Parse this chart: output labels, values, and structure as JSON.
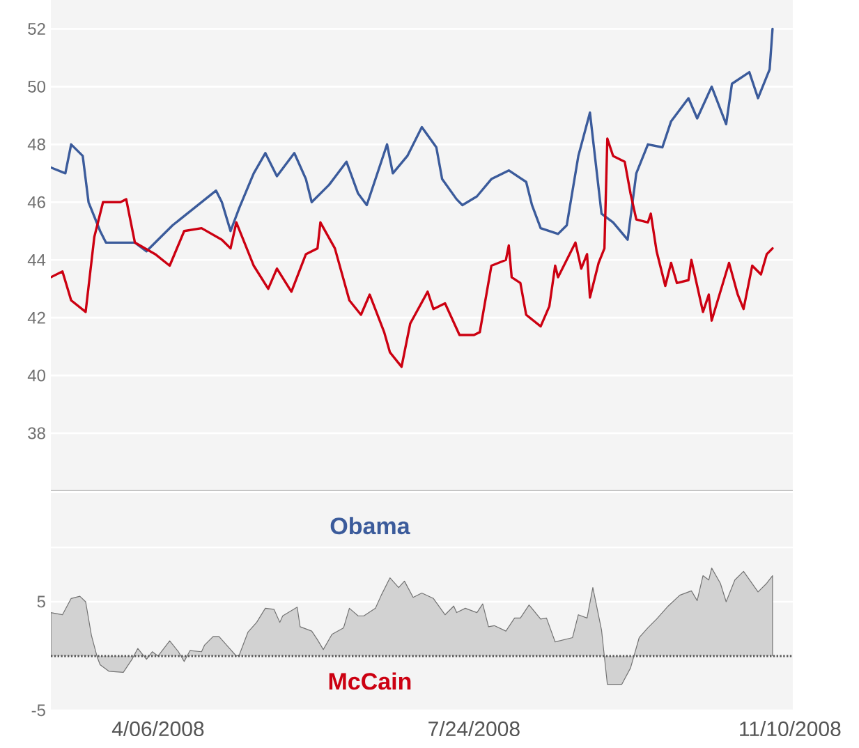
{
  "chart_data": [
    {
      "type": "line",
      "xlim": [
        "2008-02-29",
        "2008-11-11"
      ],
      "ylim": [
        36,
        53
      ],
      "yticks": [
        38,
        40,
        42,
        44,
        46,
        48,
        50,
        52
      ],
      "grid": "y",
      "tick_labels": "y",
      "line_style": "solid",
      "series": [
        {
          "color": "#3b5b9b",
          "x": [
            "2008-02-29",
            "2008-03-05",
            "2008-03-07",
            "2008-03-11",
            "2008-03-13",
            "2008-03-17",
            "2008-03-19",
            "2008-03-29",
            "2008-04-02",
            "2008-04-07",
            "2008-04-11",
            "2008-04-16",
            "2008-04-21",
            "2008-04-26",
            "2008-04-28",
            "2008-05-01",
            "2008-05-04",
            "2008-05-09",
            "2008-05-13",
            "2008-05-17",
            "2008-05-23",
            "2008-05-27",
            "2008-05-29",
            "2008-06-04",
            "2008-06-10",
            "2008-06-14",
            "2008-06-17",
            "2008-06-24",
            "2008-06-26",
            "2008-07-01",
            "2008-07-06",
            "2008-07-11",
            "2008-07-13",
            "2008-07-18",
            "2008-07-20",
            "2008-07-25",
            "2008-07-30",
            "2008-08-05",
            "2008-08-11",
            "2008-08-13",
            "2008-08-16",
            "2008-08-22",
            "2008-08-25",
            "2008-08-29",
            "2008-09-02",
            "2008-09-06",
            "2008-09-10",
            "2008-09-15",
            "2008-09-18",
            "2008-09-22",
            "2008-09-27",
            "2008-09-30",
            "2008-10-06",
            "2008-10-09",
            "2008-10-14",
            "2008-10-19",
            "2008-10-21",
            "2008-10-27",
            "2008-10-30",
            "2008-11-03",
            "2008-11-04"
          ],
          "values": [
            47.2,
            47.0,
            48.0,
            47.6,
            46.0,
            45.0,
            44.6,
            44.6,
            44.3,
            44.8,
            45.2,
            45.6,
            46.0,
            46.4,
            46.0,
            45.0,
            45.8,
            47.0,
            47.7,
            46.9,
            47.7,
            46.8,
            46.0,
            46.6,
            47.4,
            46.3,
            45.9,
            48.0,
            47.0,
            47.6,
            48.6,
            47.9,
            46.8,
            46.1,
            45.9,
            46.2,
            46.8,
            47.1,
            46.7,
            45.9,
            45.1,
            44.9,
            45.2,
            47.6,
            49.1,
            45.6,
            45.3,
            44.7,
            47.0,
            48.0,
            47.9,
            48.8,
            49.6,
            48.9,
            50.0,
            48.7,
            50.1,
            50.5,
            49.6,
            50.6,
            52.0
          ]
        },
        {
          "color": "#cc0011",
          "x": [
            "2008-02-29",
            "2008-03-04",
            "2008-03-07",
            "2008-03-12",
            "2008-03-15",
            "2008-03-18",
            "2008-03-24",
            "2008-03-26",
            "2008-03-29",
            "2008-04-05",
            "2008-04-10",
            "2008-04-15",
            "2008-04-21",
            "2008-04-28",
            "2008-05-01",
            "2008-05-03",
            "2008-05-09",
            "2008-05-14",
            "2008-05-17",
            "2008-05-22",
            "2008-05-27",
            "2008-05-31",
            "2008-06-01",
            "2008-06-06",
            "2008-06-11",
            "2008-06-15",
            "2008-06-18",
            "2008-06-23",
            "2008-06-25",
            "2008-06-29",
            "2008-07-02",
            "2008-07-08",
            "2008-07-10",
            "2008-07-14",
            "2008-07-19",
            "2008-07-24",
            "2008-07-26",
            "2008-07-30",
            "2008-08-04",
            "2008-08-05",
            "2008-08-06",
            "2008-08-09",
            "2008-08-11",
            "2008-08-16",
            "2008-08-19",
            "2008-08-21",
            "2008-08-22",
            "2008-08-28",
            "2008-08-30",
            "2008-09-01",
            "2008-09-02",
            "2008-09-05",
            "2008-09-07",
            "2008-09-08",
            "2008-09-10",
            "2008-09-14",
            "2008-09-16",
            "2008-09-18",
            "2008-09-22",
            "2008-09-23",
            "2008-09-25",
            "2008-09-28",
            "2008-09-30",
            "2008-10-02",
            "2008-10-06",
            "2008-10-07",
            "2008-10-11",
            "2008-10-13",
            "2008-10-14",
            "2008-10-20",
            "2008-10-23",
            "2008-10-25",
            "2008-10-28",
            "2008-10-31",
            "2008-11-02",
            "2008-11-04"
          ],
          "values": [
            43.4,
            43.6,
            42.6,
            42.2,
            44.8,
            46.0,
            46.0,
            46.1,
            44.6,
            44.2,
            43.8,
            45.0,
            45.1,
            44.7,
            44.4,
            45.3,
            43.8,
            43.0,
            43.7,
            42.9,
            44.2,
            44.4,
            45.3,
            44.4,
            42.6,
            42.1,
            42.8,
            41.5,
            40.8,
            40.3,
            41.8,
            42.9,
            42.3,
            42.5,
            41.4,
            41.4,
            41.5,
            43.8,
            44.0,
            44.5,
            43.4,
            43.2,
            42.1,
            41.7,
            42.4,
            43.8,
            43.4,
            44.6,
            43.7,
            44.2,
            42.7,
            43.9,
            44.4,
            48.2,
            47.6,
            47.4,
            46.3,
            45.4,
            45.3,
            45.6,
            44.3,
            43.1,
            43.9,
            43.2,
            43.3,
            44.0,
            42.2,
            42.8,
            41.9,
            43.9,
            42.8,
            42.3,
            43.8,
            43.5,
            44.2,
            44.4
          ]
        }
      ]
    },
    {
      "type": "area",
      "xlim": [
        "2008-02-29",
        "2008-11-11"
      ],
      "ylim": [
        -5,
        15
      ],
      "yticks": [
        -5,
        5,
        {
          "value": 10,
          "label": null
        }
      ],
      "grid": "y",
      "xticks": [
        {
          "value": "2008-04-06",
          "label": "4/06/2008"
        },
        {
          "value": "2008-07-24",
          "label": "7/24/2008"
        },
        {
          "value": "2008-11-10",
          "label": "11/10/2008"
        }
      ],
      "annotations": [
        "Obama",
        "McCain"
      ],
      "ref_lines": [
        {
          "axis": "y",
          "value": 0,
          "color": "#555555",
          "line_style": "dotted"
        }
      ],
      "color": "#d2d2d2",
      "x": [
        "2008-02-29",
        "2008-03-04",
        "2008-03-07",
        "2008-03-10",
        "2008-03-12",
        "2008-03-14",
        "2008-03-16",
        "2008-03-17",
        "2008-03-20",
        "2008-03-25",
        "2008-03-28",
        "2008-03-30",
        "2008-04-02",
        "2008-04-04",
        "2008-04-06",
        "2008-04-10",
        "2008-04-13",
        "2008-04-15",
        "2008-04-17",
        "2008-04-21",
        "2008-04-22",
        "2008-04-25",
        "2008-04-27",
        "2008-05-01",
        "2008-05-03",
        "2008-05-04",
        "2008-05-07",
        "2008-05-10",
        "2008-05-13",
        "2008-05-16",
        "2008-05-18",
        "2008-05-19",
        "2008-05-24",
        "2008-05-25",
        "2008-05-29",
        "2008-05-31",
        "2008-06-02",
        "2008-06-05",
        "2008-06-09",
        "2008-06-11",
        "2008-06-14",
        "2008-06-16",
        "2008-06-20",
        "2008-06-22",
        "2008-06-25",
        "2008-06-28",
        "2008-06-30",
        "2008-07-03",
        "2008-07-06",
        "2008-07-10",
        "2008-07-14",
        "2008-07-17",
        "2008-07-18",
        "2008-07-21",
        "2008-07-25",
        "2008-07-27",
        "2008-07-29",
        "2008-07-31",
        "2008-08-04",
        "2008-08-07",
        "2008-08-09",
        "2008-08-12",
        "2008-08-16",
        "2008-08-18",
        "2008-08-21",
        "2008-08-27",
        "2008-08-29",
        "2008-09-01",
        "2008-09-03",
        "2008-09-06",
        "2008-09-08",
        "2008-09-13",
        "2008-09-16",
        "2008-09-19",
        "2008-09-22",
        "2008-09-25",
        "2008-09-29",
        "2008-10-03",
        "2008-10-07",
        "2008-10-09",
        "2008-10-11",
        "2008-10-13",
        "2008-10-14",
        "2008-10-17",
        "2008-10-19",
        "2008-10-22",
        "2008-10-25",
        "2008-10-30",
        "2008-11-02",
        "2008-11-04"
      ],
      "values": [
        4.0,
        3.8,
        5.3,
        5.5,
        5.0,
        1.9,
        -0.1,
        -0.8,
        -1.4,
        -1.5,
        -0.3,
        0.7,
        -0.3,
        0.4,
        0,
        1.4,
        0.4,
        -0.5,
        0.5,
        0.4,
        1.0,
        1.8,
        1.8,
        0.6,
        0,
        0.1,
        2.2,
        3.1,
        4.4,
        4.3,
        3.1,
        3.7,
        4.5,
        2.7,
        2.3,
        1.5,
        0.6,
        2.0,
        2.6,
        4.4,
        3.7,
        3.7,
        4.4,
        5.6,
        7.2,
        6.3,
        6.9,
        5.4,
        5.8,
        5.3,
        3.8,
        4.6,
        4.0,
        4.4,
        4.0,
        4.8,
        2.7,
        2.8,
        2.3,
        3.5,
        3.5,
        4.7,
        3.4,
        3.5,
        1.3,
        1.7,
        3.8,
        3.5,
        6.3,
        2.4,
        -2.6,
        -2.6,
        -1.1,
        1.7,
        2.6,
        3.4,
        4.6,
        5.6,
        6.0,
        5.1,
        7.4,
        7.0,
        8.1,
        6.7,
        5.0,
        7.0,
        7.8,
        5.9,
        6.7,
        7.4
      ]
    }
  ]
}
